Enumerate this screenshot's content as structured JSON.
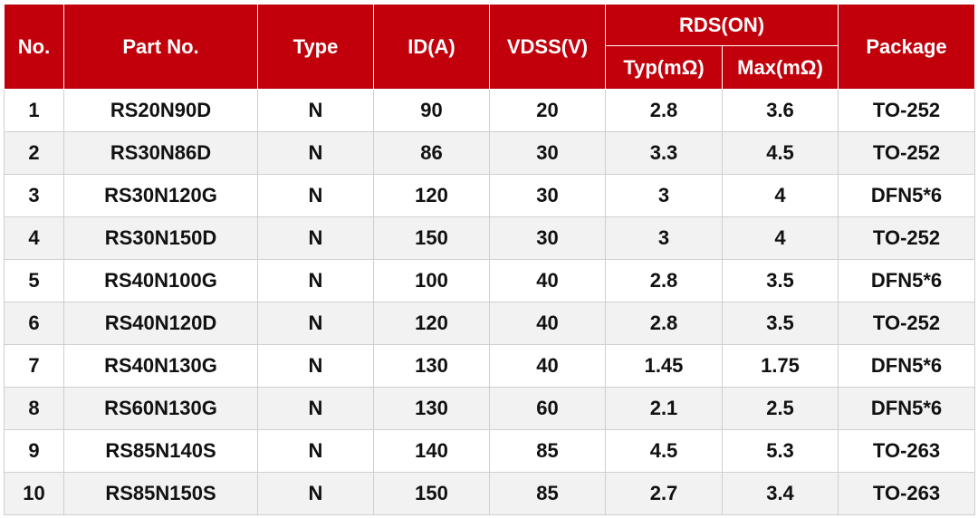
{
  "table": {
    "header": {
      "no": "No.",
      "part": "Part No.",
      "type": "Type",
      "id": "ID(A)",
      "vdss": "VDSS(V)",
      "rds": "RDS(ON)",
      "typ": "Typ(mΩ)",
      "max": "Max(mΩ)",
      "package": "Package"
    },
    "rows": [
      [
        "1",
        "RS20N90D",
        "N",
        "90",
        "20",
        "2.8",
        "3.6",
        "TO-252"
      ],
      [
        "2",
        "RS30N86D",
        "N",
        "86",
        "30",
        "3.3",
        "4.5",
        "TO-252"
      ],
      [
        "3",
        "RS30N120G",
        "N",
        "120",
        "30",
        "3",
        "4",
        "DFN5*6"
      ],
      [
        "4",
        "RS30N150D",
        "N",
        "150",
        "30",
        "3",
        "4",
        "TO-252"
      ],
      [
        "5",
        "RS40N100G",
        "N",
        "100",
        "40",
        "2.8",
        "3.5",
        "DFN5*6"
      ],
      [
        "6",
        "RS40N120D",
        "N",
        "120",
        "40",
        "2.8",
        "3.5",
        "TO-252"
      ],
      [
        "7",
        "RS40N130G",
        "N",
        "130",
        "40",
        "1.45",
        "1.75",
        "DFN5*6"
      ],
      [
        "8",
        "RS60N130G",
        "N",
        "130",
        "60",
        "2.1",
        "2.5",
        "DFN5*6"
      ],
      [
        "9",
        "RS85N140S",
        "N",
        "140",
        "85",
        "4.5",
        "5.3",
        "TO-263"
      ],
      [
        "10",
        "RS85N150S",
        "N",
        "150",
        "85",
        "2.7",
        "3.4",
        "TO-263"
      ]
    ]
  }
}
